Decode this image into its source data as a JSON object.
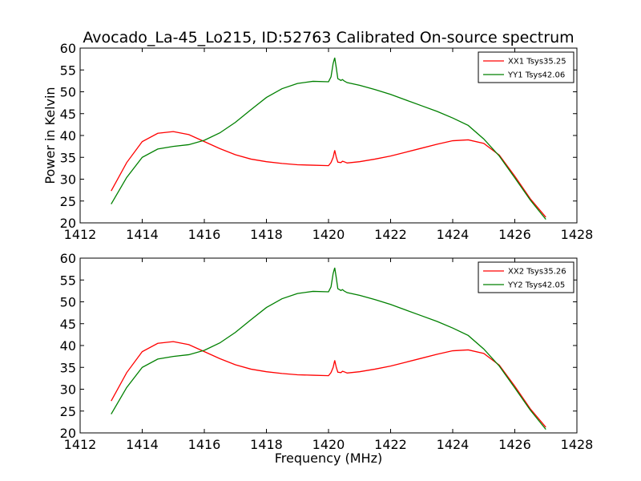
{
  "title": "Avocado_La-45_Lo215, ID:52763 Calibrated On-source spectrum",
  "chart_data": [
    {
      "type": "line",
      "ylabel": "Power in Kelvin",
      "xlabel": "",
      "xlim": [
        1412,
        1428
      ],
      "ylim": [
        20,
        60
      ],
      "xticks": [
        1412,
        1414,
        1416,
        1418,
        1420,
        1422,
        1424,
        1426,
        1428
      ],
      "yticks": [
        20,
        25,
        30,
        35,
        40,
        45,
        50,
        55,
        60
      ],
      "legend_position": "top-right",
      "grid": false,
      "series": [
        {
          "name": "XX1 Tsys35.25",
          "color": "#ff0000",
          "x": [
            1413.0,
            1413.5,
            1414.0,
            1414.5,
            1415.0,
            1415.5,
            1416.0,
            1416.5,
            1417.0,
            1417.5,
            1418.0,
            1418.5,
            1419.0,
            1419.5,
            1420.0,
            1420.08,
            1420.15,
            1420.2,
            1420.25,
            1420.3,
            1420.4,
            1420.45,
            1420.5,
            1420.6,
            1421.0,
            1421.5,
            1422.0,
            1422.5,
            1423.0,
            1423.5,
            1424.0,
            1424.5,
            1425.0,
            1425.5,
            1426.0,
            1426.5,
            1427.0
          ],
          "y": [
            27.3,
            33.8,
            38.6,
            40.5,
            40.9,
            40.2,
            38.6,
            37.0,
            35.6,
            34.6,
            34.0,
            33.6,
            33.3,
            33.2,
            33.1,
            33.8,
            35.0,
            36.6,
            35.0,
            33.9,
            33.8,
            34.1,
            34.0,
            33.7,
            34.0,
            34.6,
            35.3,
            36.2,
            37.1,
            38.0,
            38.8,
            39.0,
            38.2,
            35.5,
            30.7,
            25.5,
            21.3
          ]
        },
        {
          "name": "YY1 Tsys42.06",
          "color": "#008000",
          "x": [
            1413.0,
            1413.5,
            1414.0,
            1414.5,
            1415.0,
            1415.5,
            1416.0,
            1416.5,
            1417.0,
            1417.5,
            1418.0,
            1418.5,
            1419.0,
            1419.5,
            1420.0,
            1420.08,
            1420.15,
            1420.2,
            1420.25,
            1420.3,
            1420.4,
            1420.45,
            1420.5,
            1420.6,
            1421.0,
            1421.5,
            1422.0,
            1422.5,
            1423.0,
            1423.5,
            1424.0,
            1424.5,
            1425.0,
            1425.5,
            1426.0,
            1426.5,
            1427.0
          ],
          "y": [
            24.3,
            30.4,
            35.0,
            36.9,
            37.5,
            37.9,
            38.9,
            40.6,
            43.0,
            45.9,
            48.7,
            50.7,
            51.9,
            52.4,
            52.3,
            53.4,
            56.5,
            57.8,
            55.5,
            53.0,
            52.6,
            52.8,
            52.5,
            52.1,
            51.5,
            50.5,
            49.4,
            48.1,
            46.8,
            45.5,
            44.0,
            42.3,
            39.2,
            35.3,
            30.3,
            25.2,
            20.8
          ]
        }
      ]
    },
    {
      "type": "line",
      "ylabel": "",
      "xlabel": "Frequency (MHz)",
      "xlim": [
        1412,
        1428
      ],
      "ylim": [
        20,
        60
      ],
      "xticks": [
        1412,
        1414,
        1416,
        1418,
        1420,
        1422,
        1424,
        1426,
        1428
      ],
      "yticks": [
        20,
        25,
        30,
        35,
        40,
        45,
        50,
        55,
        60
      ],
      "legend_position": "top-right",
      "grid": false,
      "series": [
        {
          "name": "XX2 Tsys35.26",
          "color": "#ff0000",
          "x": [
            1413.0,
            1413.5,
            1414.0,
            1414.5,
            1415.0,
            1415.5,
            1416.0,
            1416.5,
            1417.0,
            1417.5,
            1418.0,
            1418.5,
            1419.0,
            1419.5,
            1420.0,
            1420.08,
            1420.15,
            1420.2,
            1420.25,
            1420.3,
            1420.4,
            1420.45,
            1420.5,
            1420.6,
            1421.0,
            1421.5,
            1422.0,
            1422.5,
            1423.0,
            1423.5,
            1424.0,
            1424.5,
            1425.0,
            1425.5,
            1426.0,
            1426.5,
            1427.0
          ],
          "y": [
            27.3,
            33.8,
            38.6,
            40.5,
            40.9,
            40.2,
            38.6,
            37.0,
            35.6,
            34.6,
            34.0,
            33.6,
            33.3,
            33.2,
            33.1,
            33.8,
            35.0,
            36.6,
            35.0,
            33.9,
            33.8,
            34.1,
            34.0,
            33.7,
            34.0,
            34.6,
            35.3,
            36.2,
            37.1,
            38.0,
            38.8,
            39.0,
            38.2,
            35.5,
            30.7,
            25.5,
            21.3
          ]
        },
        {
          "name": "YY2 Tsys42.05",
          "color": "#008000",
          "x": [
            1413.0,
            1413.5,
            1414.0,
            1414.5,
            1415.0,
            1415.5,
            1416.0,
            1416.5,
            1417.0,
            1417.5,
            1418.0,
            1418.5,
            1419.0,
            1419.5,
            1420.0,
            1420.08,
            1420.15,
            1420.2,
            1420.25,
            1420.3,
            1420.4,
            1420.45,
            1420.5,
            1420.6,
            1421.0,
            1421.5,
            1422.0,
            1422.5,
            1423.0,
            1423.5,
            1424.0,
            1424.5,
            1425.0,
            1425.5,
            1426.0,
            1426.5,
            1427.0
          ],
          "y": [
            24.3,
            30.4,
            35.0,
            36.9,
            37.5,
            37.9,
            38.9,
            40.6,
            43.0,
            45.9,
            48.7,
            50.7,
            51.9,
            52.4,
            52.3,
            53.4,
            56.5,
            57.8,
            55.5,
            53.0,
            52.6,
            52.8,
            52.5,
            52.1,
            51.5,
            50.5,
            49.4,
            48.1,
            46.8,
            45.5,
            44.0,
            42.3,
            39.2,
            35.3,
            30.3,
            25.2,
            20.8
          ]
        }
      ]
    }
  ]
}
